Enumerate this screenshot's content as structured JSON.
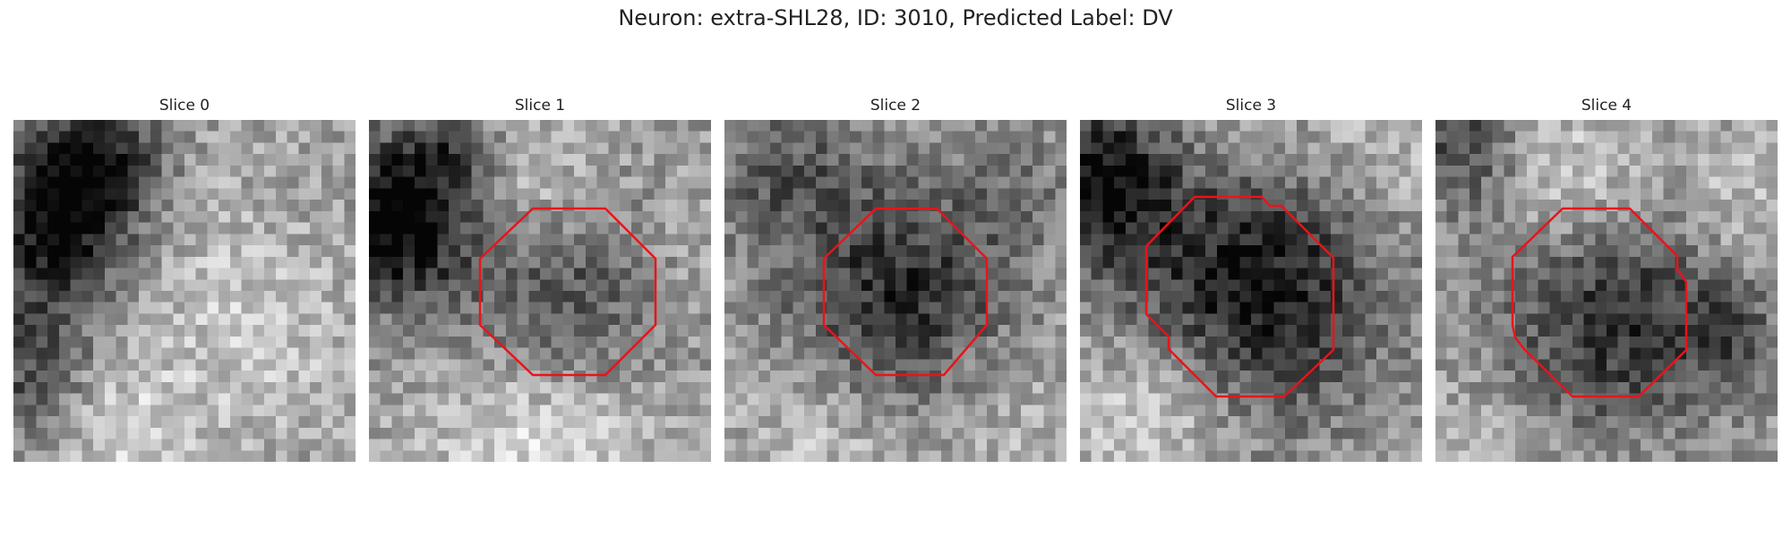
{
  "figure": {
    "title": "Neuron: extra-SHL28, ID: 3010, Predicted Label: DV"
  },
  "slices": [
    {
      "title": "Slice 0",
      "has_contour": false
    },
    {
      "title": "Slice 1",
      "has_contour": true
    },
    {
      "title": "Slice 2",
      "has_contour": true
    },
    {
      "title": "Slice 3",
      "has_contour": true
    },
    {
      "title": "Slice 4",
      "has_contour": true
    }
  ],
  "colors": {
    "contour": "#e8141b",
    "background": "#ffffff"
  },
  "colormap": "gray"
}
